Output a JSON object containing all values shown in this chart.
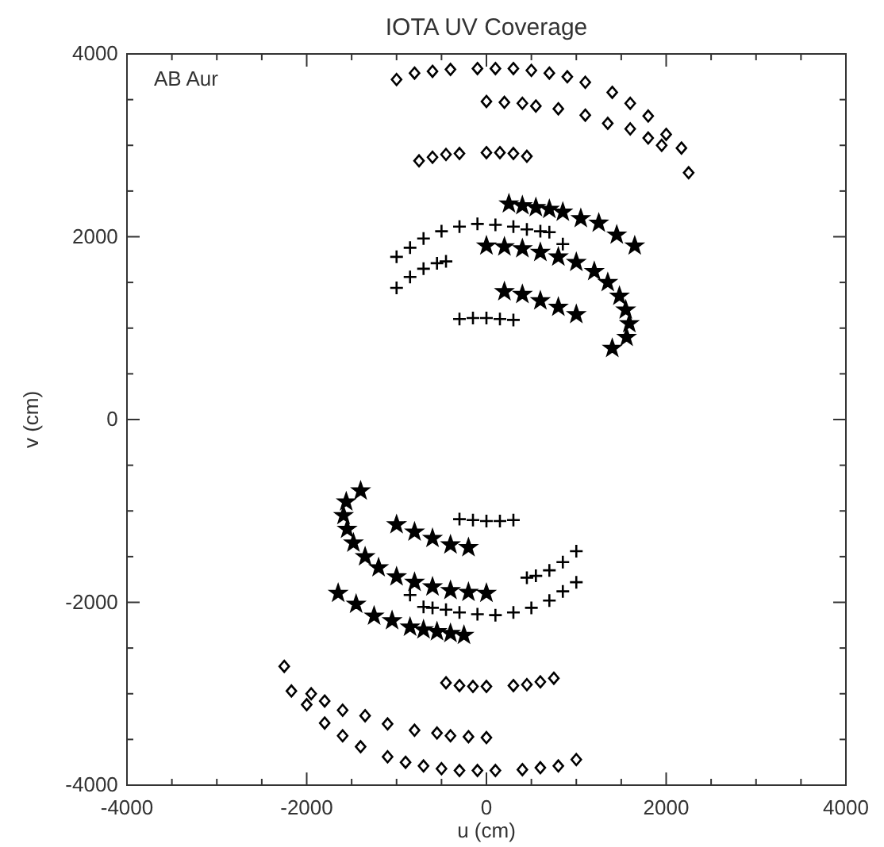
{
  "chart_data": {
    "type": "scatter",
    "title": "IOTA UV Coverage",
    "xlabel": "u (cm)",
    "ylabel": "v (cm)",
    "annotations": [
      "AB Aur"
    ],
    "xlim": [
      -4000,
      4000
    ],
    "ylim": [
      -4000,
      4000
    ],
    "xticks": [
      -4000,
      {
        "value": -3500,
        "label": null
      },
      {
        "value": -3000,
        "label": null
      },
      {
        "value": -2500,
        "label": null
      },
      -2000,
      {
        "value": -1500,
        "label": null
      },
      {
        "value": -1000,
        "label": null
      },
      {
        "value": -500,
        "label": null
      },
      0,
      {
        "value": 500,
        "label": null
      },
      {
        "value": 1000,
        "label": null
      },
      {
        "value": 1500,
        "label": null
      },
      2000,
      {
        "value": 2500,
        "label": null
      },
      {
        "value": 3000,
        "label": null
      },
      {
        "value": 3500,
        "label": null
      },
      4000
    ],
    "yticks": [
      -4000,
      {
        "value": -3500,
        "label": null
      },
      {
        "value": -3000,
        "label": null
      },
      {
        "value": -2500,
        "label": null
      },
      -2000,
      {
        "value": -1500,
        "label": null
      },
      {
        "value": -1000,
        "label": null
      },
      {
        "value": -500,
        "label": null
      },
      0,
      {
        "value": 500,
        "label": null
      },
      {
        "value": 1000,
        "label": null
      },
      {
        "value": 1500,
        "label": null
      },
      2000,
      {
        "value": 2500,
        "label": null
      },
      {
        "value": 3000,
        "label": null
      },
      {
        "value": 3500,
        "label": null
      },
      4000
    ],
    "grid": false,
    "series": [
      {
        "marker": "diamond",
        "color": "#000000",
        "x": [
          -1000,
          -800,
          -600,
          -400,
          -100,
          100,
          300,
          500,
          700,
          900,
          1100,
          1400,
          1600,
          1800,
          2000,
          2170,
          2250,
          0,
          200,
          400,
          550,
          800,
          1100,
          1350,
          1600,
          1800,
          1950,
          -750,
          -600,
          -450,
          -300,
          0,
          150,
          300,
          450,
          1000,
          800,
          600,
          400,
          100,
          -100,
          -300,
          -500,
          -700,
          -900,
          -1100,
          -1400,
          -1600,
          -1800,
          -2000,
          -2170,
          -2250,
          0,
          -200,
          -400,
          -550,
          -800,
          -1100,
          -1350,
          -1600,
          -1800,
          -1950,
          750,
          600,
          450,
          300,
          0,
          -150,
          -300,
          -450
        ],
        "values": [
          3720,
          3790,
          3810,
          3830,
          3840,
          3840,
          3840,
          3820,
          3790,
          3750,
          3690,
          3580,
          3460,
          3320,
          3120,
          2970,
          2700,
          3480,
          3470,
          3460,
          3430,
          3400,
          3330,
          3240,
          3180,
          3080,
          3000,
          2830,
          2870,
          2900,
          2910,
          2920,
          2920,
          2910,
          2880,
          -3720,
          -3790,
          -3810,
          -3830,
          -3840,
          -3840,
          -3840,
          -3820,
          -3790,
          -3750,
          -3690,
          -3580,
          -3460,
          -3320,
          -3120,
          -2970,
          -2700,
          -3480,
          -3470,
          -3460,
          -3430,
          -3400,
          -3330,
          -3240,
          -3180,
          -3080,
          -3000,
          -2830,
          -2870,
          -2900,
          -2910,
          -2920,
          -2920,
          -2910,
          -2880
        ]
      },
      {
        "marker": "cross",
        "color": "#000000",
        "x": [
          -1000,
          -850,
          -700,
          -500,
          -300,
          -100,
          100,
          300,
          450,
          600,
          700,
          850,
          -1000,
          -850,
          -700,
          -550,
          -450,
          -300,
          -150,
          0,
          150,
          300,
          1000,
          850,
          700,
          500,
          300,
          100,
          -100,
          -300,
          -450,
          -600,
          -700,
          -850,
          1000,
          850,
          700,
          550,
          450,
          300,
          150,
          0,
          -150,
          -300
        ],
        "values": [
          1780,
          1880,
          1980,
          2060,
          2110,
          2140,
          2130,
          2110,
          2080,
          2060,
          2050,
          1920,
          1440,
          1560,
          1650,
          1710,
          1730,
          1100,
          1110,
          1110,
          1100,
          1090,
          -1780,
          -1880,
          -1980,
          -2060,
          -2110,
          -2140,
          -2130,
          -2110,
          -2080,
          -2060,
          -2050,
          -1920,
          -1440,
          -1560,
          -1650,
          -1710,
          -1730,
          -1100,
          -1110,
          -1110,
          -1100,
          -1090
        ]
      },
      {
        "marker": "star",
        "color": "#000000",
        "x": [
          250,
          400,
          550,
          700,
          850,
          1050,
          1250,
          1450,
          1650,
          0,
          200,
          400,
          600,
          800,
          1000,
          1200,
          1350,
          1480,
          1550,
          1590,
          1560,
          1400,
          200,
          400,
          600,
          800,
          1000,
          -250,
          -400,
          -550,
          -700,
          -850,
          -1050,
          -1250,
          -1450,
          -1650,
          0,
          -200,
          -400,
          -600,
          -800,
          -1000,
          -1200,
          -1350,
          -1480,
          -1550,
          -1590,
          -1560,
          -1400,
          -200,
          -400,
          -600,
          -800,
          -1000
        ],
        "values": [
          2360,
          2340,
          2320,
          2300,
          2270,
          2200,
          2150,
          2020,
          1900,
          1900,
          1890,
          1870,
          1830,
          1780,
          1720,
          1620,
          1500,
          1350,
          1200,
          1050,
          900,
          780,
          1400,
          1370,
          1300,
          1230,
          1150,
          -2360,
          -2340,
          -2320,
          -2300,
          -2270,
          -2200,
          -2150,
          -2020,
          -1900,
          -1900,
          -1890,
          -1870,
          -1830,
          -1780,
          -1720,
          -1620,
          -1500,
          -1350,
          -1200,
          -1050,
          -900,
          -780,
          -1400,
          -1370,
          -1300,
          -1230,
          -1150
        ]
      }
    ]
  }
}
